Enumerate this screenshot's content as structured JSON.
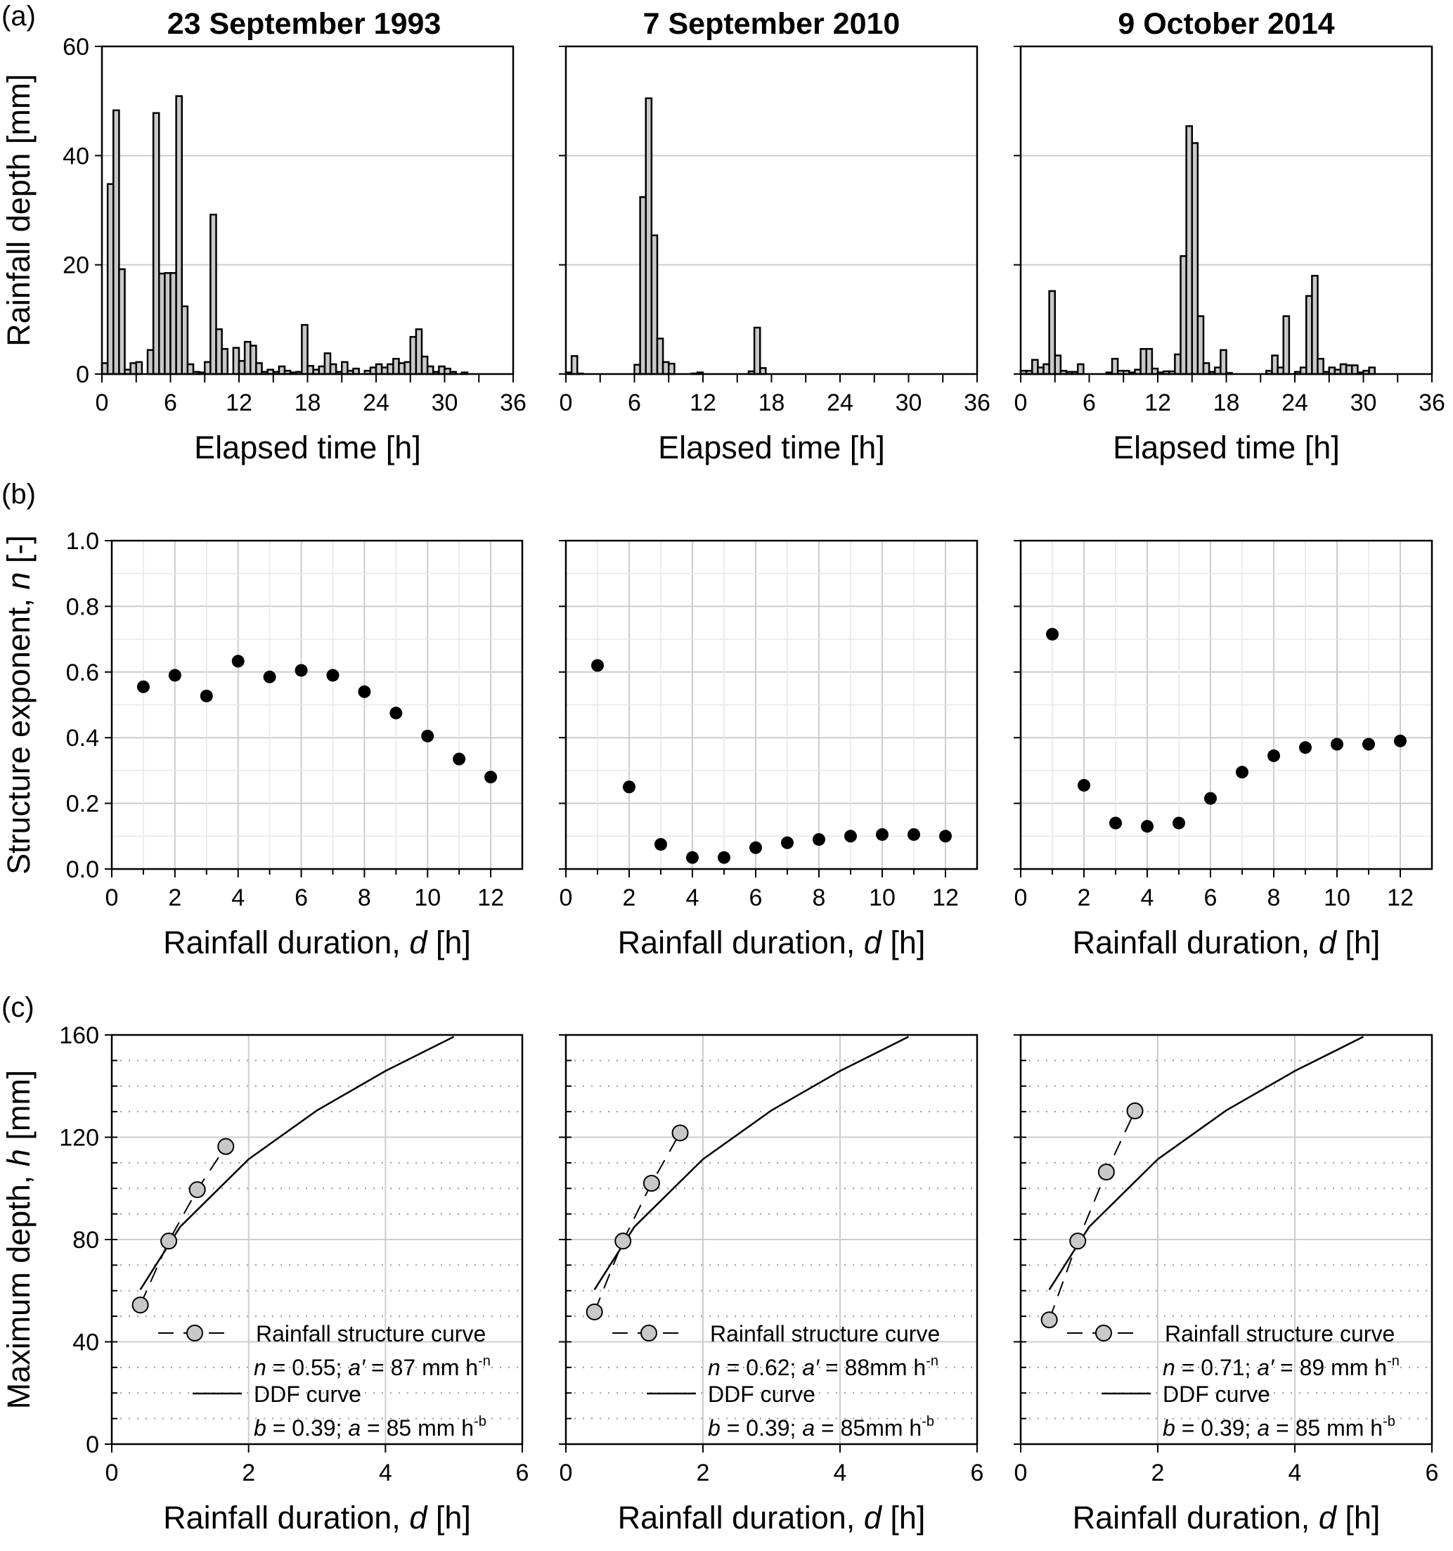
{
  "figure": {
    "panel_letters": [
      "(a)",
      "(b)",
      "(c)"
    ],
    "colors": {
      "bar_fill": "#c8c8c8",
      "bar_stroke": "#000000",
      "marker_fill": "#c8c8c8",
      "point_fill": "#000000",
      "grid": "#cccccc"
    }
  },
  "chart_data": [
    {
      "type": "bar",
      "row": "a",
      "title": "23 September 1993",
      "xlabel": "Elapsed time [h]",
      "ylabel": "Rainfall depth [mm]",
      "xlim": [
        0,
        36
      ],
      "ylim": [
        0,
        60
      ],
      "xticks": [
        0,
        6,
        12,
        18,
        24,
        30,
        36
      ],
      "yticks": [
        0,
        20,
        40,
        60
      ],
      "grid": "horizontal",
      "bin_width_h": 0.5,
      "values": [
        2.0,
        34.8,
        48.3,
        19.2,
        0.8,
        2.0,
        2.2,
        0,
        4.4,
        47.8,
        18.4,
        18.5,
        18.5,
        50.9,
        12.4,
        1.8,
        0.4,
        0.3,
        2.2,
        29.2,
        8.2,
        4.6,
        0,
        4.8,
        2.4,
        5.9,
        5.2,
        2.0,
        0.4,
        0.8,
        0.4,
        1.4,
        0.6,
        0.3,
        0.4,
        9.0,
        1.5,
        0.8,
        1.4,
        3.8,
        1.8,
        0.4,
        2.2,
        0.6,
        1.0,
        0,
        0.6,
        1.2,
        1.8,
        1.2,
        1.8,
        2.8,
        2.0,
        2.2,
        6.8,
        8.2,
        3.2,
        1.4,
        0.4,
        1.4,
        1.0,
        0.4,
        0,
        0.3,
        0,
        0,
        0,
        0,
        0,
        0,
        0,
        0
      ]
    },
    {
      "type": "bar",
      "row": "a",
      "title": "7 September 2010",
      "xlabel": "Elapsed time [h]",
      "ylabel": "",
      "xlim": [
        0,
        36
      ],
      "ylim": [
        0,
        60
      ],
      "xticks": [
        0,
        6,
        12,
        18,
        24,
        30,
        36
      ],
      "yticks": [
        0,
        20,
        40,
        60
      ],
      "grid": "horizontal",
      "bin_width_h": 0.5,
      "values": [
        0.3,
        3.3,
        0.1,
        0,
        0,
        0,
        0,
        0,
        0,
        0,
        0,
        0,
        1.7,
        32.4,
        50.5,
        25.4,
        6.5,
        2.2,
        1.9,
        0,
        0,
        0,
        0.1,
        0.3,
        0,
        0,
        0,
        0,
        0,
        0,
        0,
        0,
        0.5,
        8.5,
        1.1,
        0,
        0,
        0,
        0,
        0,
        0,
        0,
        0,
        0,
        0,
        0,
        0,
        0,
        0,
        0,
        0,
        0,
        0,
        0,
        0,
        0,
        0,
        0,
        0,
        0,
        0,
        0,
        0,
        0,
        0,
        0,
        0,
        0,
        0,
        0,
        0,
        0
      ]
    },
    {
      "type": "bar",
      "row": "a",
      "title": "9 October 2014",
      "xlabel": "Elapsed time [h]",
      "ylabel": "",
      "xlim": [
        0,
        36
      ],
      "ylim": [
        0,
        60
      ],
      "xticks": [
        0,
        6,
        12,
        18,
        24,
        30,
        36
      ],
      "yticks": [
        0,
        20,
        40,
        60
      ],
      "grid": "horizontal",
      "bin_width_h": 0.5,
      "values": [
        0.6,
        0.6,
        2.6,
        1.2,
        1.8,
        15.2,
        3.4,
        0.6,
        0.4,
        0.4,
        1.8,
        0,
        0,
        0,
        0,
        0.3,
        2.8,
        0.6,
        0.6,
        0.3,
        0.8,
        4.6,
        4.6,
        1.0,
        0.3,
        0.5,
        0.5,
        3.6,
        21.6,
        45.4,
        42.3,
        10.6,
        2.0,
        0.4,
        1.2,
        4.4,
        0.2,
        0,
        0,
        0,
        0,
        0,
        0,
        0.6,
        3.4,
        1.2,
        10.6,
        0,
        0.4,
        1.2,
        14.3,
        18.0,
        2.8,
        0.4,
        1.2,
        0.8,
        1.8,
        1.6,
        1.6,
        0.3,
        0.6,
        1.2,
        0,
        0,
        0,
        0,
        0,
        0,
        0,
        0,
        0,
        0
      ]
    },
    {
      "type": "scatter",
      "row": "b",
      "xlabel": "Rainfall duration, d [h]",
      "ylabel": "Structure exponent, n [-]",
      "xlim": [
        0,
        13
      ],
      "ylim": [
        0,
        1
      ],
      "xticks": [
        0,
        2,
        4,
        6,
        8,
        10,
        12
      ],
      "yticks": [
        0.0,
        0.2,
        0.4,
        0.6,
        0.8,
        1.0
      ],
      "tick_decimals": 1,
      "grid": "both",
      "x": [
        1,
        2,
        3,
        4,
        5,
        6,
        7,
        8,
        9,
        10,
        11,
        12
      ],
      "y": [
        0.555,
        0.59,
        0.527,
        0.633,
        0.585,
        0.605,
        0.59,
        0.54,
        0.475,
        0.405,
        0.335,
        0.28
      ]
    },
    {
      "type": "scatter",
      "row": "b",
      "xlabel": "Rainfall duration, d [h]",
      "ylabel": "",
      "xlim": [
        0,
        13
      ],
      "ylim": [
        0,
        1
      ],
      "xticks": [
        0,
        2,
        4,
        6,
        8,
        10,
        12
      ],
      "yticks": [
        0.0,
        0.2,
        0.4,
        0.6,
        0.8,
        1.0
      ],
      "tick_decimals": 1,
      "grid": "both",
      "x": [
        1,
        2,
        3,
        4,
        5,
        6,
        7,
        8,
        9,
        10,
        11,
        12
      ],
      "y": [
        0.62,
        0.25,
        0.075,
        0.035,
        0.035,
        0.065,
        0.08,
        0.09,
        0.1,
        0.105,
        0.105,
        0.1
      ]
    },
    {
      "type": "scatter",
      "row": "b",
      "xlabel": "Rainfall duration, d [h]",
      "ylabel": "",
      "xlim": [
        0,
        13
      ],
      "ylim": [
        0,
        1
      ],
      "xticks": [
        0,
        2,
        4,
        6,
        8,
        10,
        12
      ],
      "yticks": [
        0.0,
        0.2,
        0.4,
        0.6,
        0.8,
        1.0
      ],
      "tick_decimals": 1,
      "grid": "both",
      "x": [
        1,
        2,
        3,
        4,
        5,
        6,
        7,
        8,
        9,
        10,
        11,
        12
      ],
      "y": [
        0.715,
        0.255,
        0.14,
        0.13,
        0.14,
        0.215,
        0.295,
        0.345,
        0.37,
        0.38,
        0.38,
        0.39
      ]
    },
    {
      "type": "line",
      "row": "c",
      "xlabel": "Rainfall duration, d [h]",
      "ylabel": "Maximum depth, h [mm]",
      "xlim": [
        0,
        6
      ],
      "ylim": [
        0,
        160
      ],
      "xticks": [
        0,
        2,
        4,
        6
      ],
      "yticks": [
        0,
        40,
        80,
        120,
        160
      ],
      "grid": "major solid, minor dotted",
      "series": [
        {
          "name": "Rainfall structure curve",
          "style": "dashed-circle",
          "x": [
            0.417,
            0.833,
            1.25,
            1.667
          ],
          "y": [
            54.4,
            79.4,
            99.5,
            116.4
          ]
        },
        {
          "name": "DDF curve",
          "style": "solid",
          "x": [
            0.417,
            1,
            2,
            3,
            4,
            5
          ],
          "y": [
            60.4,
            85,
            111.4,
            130.5,
            145.9,
            159.3
          ]
        }
      ],
      "legend": {
        "structure_label": "Rainfall structure curve",
        "n": "0.55",
        "a_prime": "87",
        "ddf_label": "DDF curve",
        "b": "0.39",
        "a": "85",
        "unit": " mm h",
        "unit_nospace": false,
        "exp_n": "-n",
        "exp_b": "-b"
      }
    },
    {
      "type": "line",
      "row": "c",
      "xlabel": "Rainfall duration, d [h]",
      "ylabel": "",
      "xlim": [
        0,
        6
      ],
      "ylim": [
        0,
        160
      ],
      "xticks": [
        0,
        2,
        4,
        6
      ],
      "yticks": [
        0,
        40,
        80,
        120,
        160
      ],
      "grid": "major solid, minor dotted",
      "series": [
        {
          "name": "Rainfall structure curve",
          "style": "dashed-circle",
          "x": [
            0.417,
            0.833,
            1.25,
            1.667
          ],
          "y": [
            51.7,
            79.4,
            102,
            121.7
          ]
        },
        {
          "name": "DDF curve",
          "style": "solid",
          "x": [
            0.417,
            1,
            2,
            3,
            4,
            5
          ],
          "y": [
            60.4,
            85,
            111.4,
            130.5,
            145.9,
            159.3
          ]
        }
      ],
      "legend": {
        "structure_label": "Rainfall structure curve",
        "n": "0.62",
        "a_prime": "88",
        "ddf_label": "DDF curve",
        "b": "0.39",
        "a": "85",
        "unit": "mm h",
        "exp_n": "-n",
        "exp_b": "-b"
      }
    },
    {
      "type": "line",
      "row": "c",
      "xlabel": "Rainfall duration, d [h]",
      "ylabel": "",
      "xlim": [
        0,
        6
      ],
      "ylim": [
        0,
        160
      ],
      "xticks": [
        0,
        2,
        4,
        6
      ],
      "yticks": [
        0,
        40,
        80,
        120,
        160
      ],
      "grid": "major solid, minor dotted",
      "series": [
        {
          "name": "Rainfall structure curve",
          "style": "dashed-circle",
          "x": [
            0.417,
            0.833,
            1.25,
            1.667
          ],
          "y": [
            48.6,
            79.4,
            106.4,
            130.3
          ]
        },
        {
          "name": "DDF curve",
          "style": "solid",
          "x": [
            0.417,
            1,
            2,
            3,
            4,
            5
          ],
          "y": [
            60.4,
            85,
            111.4,
            130.5,
            145.9,
            159.3
          ]
        }
      ],
      "legend": {
        "structure_label": "Rainfall structure curve",
        "n": "0.71",
        "a_prime": "89",
        "ddf_label": "DDF curve",
        "b": "0.39",
        "a": "85",
        "unit": " mm h",
        "exp_n": "-n",
        "exp_b": "-b"
      }
    }
  ]
}
